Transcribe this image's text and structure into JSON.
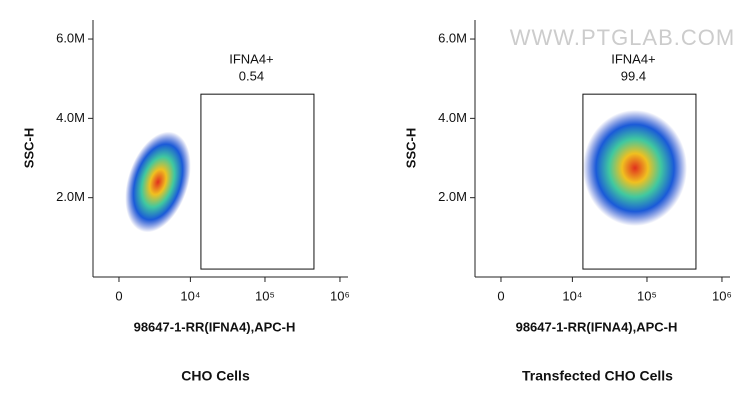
{
  "chart_data": [
    {
      "type": "scatter",
      "title": "CHO Cells",
      "xlabel": "98647-1-RR(IFNA4),APC-H",
      "ylabel": "SSC-H",
      "xscale": "biexponential",
      "xlim": [
        -2000,
        1280000
      ],
      "ylim": [
        0,
        6480000
      ],
      "xticks": [
        {
          "value": 0,
          "label": "0"
        },
        {
          "value": 10000,
          "label": "10⁴"
        },
        {
          "value": 100000,
          "label": "10⁵"
        },
        {
          "value": 1000000,
          "label": "10⁶"
        }
      ],
      "yticks": [
        {
          "value": 2000000,
          "label": "2.0M"
        },
        {
          "value": 4000000,
          "label": "4.0M"
        },
        {
          "value": 6000000,
          "label": "6.0M"
        }
      ],
      "gates": [
        {
          "name": "IFNA4+",
          "value": 0.54,
          "x": [
            13900,
            450000
          ],
          "y": [
            200000,
            4610000
          ]
        }
      ]
    },
    {
      "type": "scatter",
      "title": "Transfected CHO Cells",
      "xlabel": "98647-1-RR(IFNA4),APC-H",
      "ylabel": "SSC-H",
      "xscale": "biexponential",
      "xlim": [
        -2000,
        1280000
      ],
      "ylim": [
        0,
        6480000
      ],
      "xticks": [
        {
          "value": 0,
          "label": "0"
        },
        {
          "value": 10000,
          "label": "10⁴"
        },
        {
          "value": 100000,
          "label": "10⁵"
        },
        {
          "value": 1000000,
          "label": "10⁶"
        }
      ],
      "yticks": [
        {
          "value": 2000000,
          "label": "2.0M"
        },
        {
          "value": 4000000,
          "label": "4.0M"
        },
        {
          "value": 6000000,
          "label": "6.0M"
        }
      ],
      "gates": [
        {
          "name": "IFNA4+",
          "value": 99.4,
          "x": [
            13900,
            450000
          ],
          "y": [
            200000,
            4610000
          ]
        }
      ],
      "watermark": "WWW.PTGLAB.COM"
    }
  ]
}
